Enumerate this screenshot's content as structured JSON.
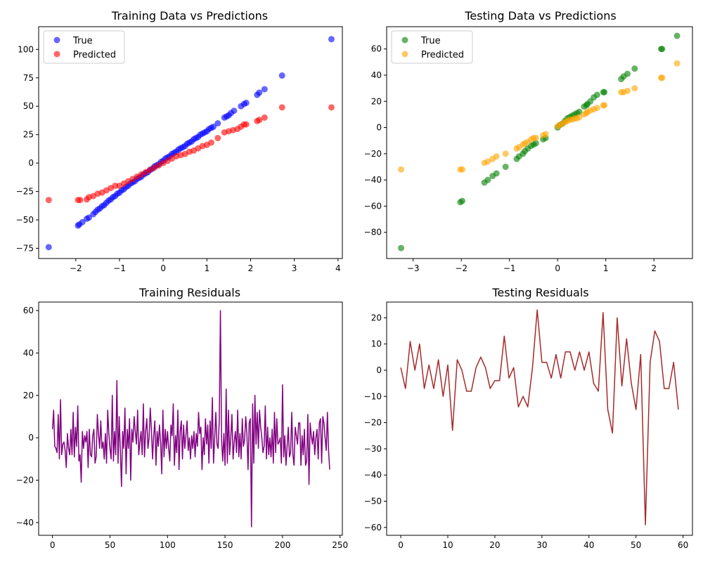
{
  "figure": {
    "background": "#ffffff"
  },
  "chart_data": [
    {
      "id": "train-scatter",
      "type": "scatter",
      "title": "Training Data vs Predictions",
      "xlim": [
        -2.85,
        4.1
      ],
      "ylim": [
        -84,
        120
      ],
      "xticks": [
        -2,
        -1,
        0,
        1,
        2,
        3,
        4
      ],
      "yticks": [
        -75,
        -50,
        -25,
        0,
        25,
        50,
        75,
        100
      ],
      "legend": "top-left",
      "series": [
        {
          "name": "True",
          "color": "#0000ff",
          "alpha": 0.6,
          "x": [
            -2.62,
            -1.95,
            -1.92,
            -1.85,
            -1.75,
            -1.7,
            -1.6,
            -1.55,
            -1.5,
            -1.45,
            -1.4,
            -1.35,
            -1.3,
            -1.25,
            -1.2,
            -1.15,
            -1.1,
            -1.05,
            -1.0,
            -0.95,
            -0.9,
            -0.85,
            -0.8,
            -0.75,
            -0.7,
            -0.65,
            -0.6,
            -0.55,
            -0.5,
            -0.45,
            -0.4,
            -0.35,
            -0.3,
            -0.25,
            -0.2,
            -0.15,
            -0.1,
            -0.05,
            0.0,
            0.05,
            0.1,
            0.15,
            0.2,
            0.25,
            0.3,
            0.35,
            0.4,
            0.45,
            0.5,
            0.55,
            0.6,
            0.65,
            0.7,
            0.75,
            0.8,
            0.85,
            0.9,
            0.95,
            1.0,
            1.05,
            1.1,
            1.15,
            1.25,
            1.4,
            1.45,
            1.5,
            1.55,
            1.62,
            1.78,
            1.85,
            1.9,
            2.15,
            2.2,
            2.32,
            2.72,
            3.85
          ],
          "y": [
            -74,
            -55,
            -54,
            -52,
            -49,
            -48,
            -45,
            -43,
            -41,
            -40,
            -38,
            -37,
            -35,
            -33,
            -32,
            -30,
            -29,
            -27,
            -26,
            -24,
            -23,
            -21,
            -20,
            -18,
            -17,
            -16,
            -14,
            -13,
            -12,
            -10,
            -9,
            -8,
            -6,
            -5,
            -3,
            -2,
            -1,
            1,
            2,
            4,
            5,
            6,
            8,
            9,
            10,
            12,
            13,
            14,
            15,
            17,
            18,
            19,
            21,
            22,
            23,
            25,
            26,
            27,
            28,
            30,
            31,
            32,
            35,
            40,
            41,
            42,
            44,
            46,
            50,
            52,
            53,
            60,
            62,
            65,
            77,
            109
          ]
        },
        {
          "name": "Predicted",
          "color": "#ff0000",
          "alpha": 0.6,
          "x": [
            -2.62,
            -1.95,
            -1.9,
            -1.75,
            -1.7,
            -1.6,
            -1.5,
            -1.4,
            -1.3,
            -1.2,
            -1.1,
            -1.0,
            -0.9,
            -0.8,
            -0.7,
            -0.6,
            -0.5,
            -0.4,
            -0.3,
            -0.2,
            -0.1,
            0.0,
            0.1,
            0.2,
            0.3,
            0.4,
            0.5,
            0.6,
            0.7,
            0.8,
            0.9,
            1.0,
            1.1,
            1.25,
            1.4,
            1.5,
            1.6,
            1.7,
            1.78,
            1.85,
            1.9,
            2.15,
            2.2,
            2.32,
            2.72,
            3.85
          ],
          "y": [
            -32.5,
            -32.5,
            -32.5,
            -32,
            -30,
            -29,
            -27,
            -26,
            -24,
            -22,
            -20,
            -20,
            -18,
            -16,
            -14,
            -12,
            -10,
            -8,
            -6,
            -4,
            -2,
            0,
            2,
            4,
            6,
            7,
            8,
            10,
            11,
            13,
            15,
            16,
            18,
            22,
            27,
            28,
            29,
            30,
            32,
            34,
            34,
            37,
            38,
            40,
            49,
            49
          ]
        }
      ]
    },
    {
      "id": "test-scatter",
      "type": "scatter",
      "title": "Testing Data vs Predictions",
      "xlim": [
        -3.55,
        2.8
      ],
      "ylim": [
        -100,
        77
      ],
      "xticks": [
        -3,
        -2,
        -1,
        0,
        1,
        2
      ],
      "yticks": [
        -80,
        -60,
        -40,
        -20,
        0,
        20,
        40,
        60
      ],
      "legend": "top-left",
      "series": [
        {
          "name": "True",
          "color": "#008000",
          "alpha": 0.6,
          "x": [
            -3.25,
            -2.02,
            -1.98,
            -1.52,
            -1.45,
            -1.35,
            -1.27,
            -1.08,
            -0.85,
            -0.8,
            -0.72,
            -0.68,
            -0.62,
            -0.55,
            -0.5,
            -0.45,
            -0.3,
            -0.25,
            0.0,
            0.05,
            0.1,
            0.15,
            0.2,
            0.25,
            0.3,
            0.35,
            0.4,
            0.45,
            0.55,
            0.6,
            0.62,
            0.68,
            0.75,
            0.82,
            0.95,
            0.97,
            1.32,
            1.37,
            1.45,
            1.6,
            2.15,
            2.17,
            2.48
          ],
          "y": [
            -92,
            -57,
            -56,
            -42,
            -40,
            -37,
            -35,
            -30,
            -24,
            -22,
            -20,
            -18,
            -16,
            -14,
            -13,
            -12,
            -9,
            -8,
            0,
            2,
            3,
            5,
            7,
            8,
            9,
            10,
            11,
            12,
            16,
            17,
            18,
            20,
            23,
            25,
            27,
            27,
            37,
            39,
            41,
            45,
            60,
            60,
            70
          ]
        },
        {
          "name": "Predicted",
          "color": "#ffa500",
          "alpha": 0.6,
          "x": [
            -3.25,
            -2.02,
            -1.98,
            -1.52,
            -1.45,
            -1.35,
            -1.27,
            -1.08,
            -0.85,
            -0.8,
            -0.72,
            -0.68,
            -0.62,
            -0.55,
            -0.5,
            -0.45,
            -0.3,
            -0.25,
            0.0,
            0.05,
            0.1,
            0.15,
            0.2,
            0.25,
            0.3,
            0.35,
            0.4,
            0.45,
            0.55,
            0.6,
            0.62,
            0.68,
            0.75,
            0.82,
            0.95,
            0.97,
            1.32,
            1.37,
            1.45,
            1.6,
            2.15,
            2.17,
            2.48
          ],
          "y": [
            -32,
            -32,
            -32,
            -27,
            -26,
            -24,
            -22,
            -20,
            -16,
            -15,
            -13,
            -12,
            -11,
            -9,
            -8,
            -8,
            -6,
            -5,
            1,
            2,
            3,
            4,
            5,
            6,
            6,
            7,
            7,
            8,
            10,
            11,
            12,
            13,
            14,
            15,
            17,
            17,
            27,
            27,
            28,
            30,
            38,
            38,
            49
          ]
        }
      ]
    },
    {
      "id": "train-residuals",
      "type": "line",
      "title": "Training Residuals",
      "xlim": [
        -12,
        252
      ],
      "ylim": [
        -46,
        64
      ],
      "xticks": [
        0,
        50,
        100,
        150,
        200,
        250
      ],
      "yticks": [
        -40,
        -20,
        0,
        20,
        40,
        60
      ],
      "series": [
        {
          "color": "#800080",
          "values": [
            4,
            13,
            -4,
            -5,
            -7,
            11,
            -10,
            18,
            -8,
            -3,
            -2,
            -6,
            -14,
            2,
            -5,
            -8,
            4,
            -8,
            12,
            -9,
            5,
            -4,
            15,
            -11,
            -8,
            -21,
            3,
            -5,
            1,
            -2,
            3,
            -14,
            4,
            -8,
            -9,
            1,
            4,
            -12,
            -9,
            11,
            2,
            -5,
            8,
            -5,
            -2,
            -10,
            2,
            -12,
            13,
            2,
            -5,
            -10,
            20,
            -11,
            3,
            -8,
            27,
            -12,
            10,
            -6,
            -23,
            3,
            -5,
            14,
            -17,
            4,
            -5,
            9,
            -20,
            4,
            -2,
            10,
            3,
            -3,
            13,
            -8,
            -2,
            3,
            -8,
            16,
            -9,
            3,
            9,
            -5,
            0,
            14,
            4,
            -10,
            1,
            8,
            -13,
            3,
            -4,
            6,
            -2,
            -17,
            13,
            -9,
            4,
            -5,
            3,
            -5,
            -11,
            6,
            1,
            16,
            -13,
            1,
            -7,
            13,
            -15,
            3,
            8,
            -10,
            6,
            -5,
            1,
            8,
            -6,
            0,
            -10,
            1,
            -5,
            3,
            -9,
            2,
            -4,
            12,
            2,
            5,
            -15,
            0,
            -8,
            9,
            -3,
            6,
            -12,
            8,
            -5,
            19,
            -12,
            0,
            12,
            -3,
            -5,
            8,
            60,
            -1,
            -11,
            2,
            -13,
            23,
            -12,
            13,
            -8,
            0,
            11,
            -10,
            -2,
            3,
            -7,
            13,
            -9,
            2,
            -10,
            9,
            -4,
            -1,
            10,
            2,
            -15,
            7,
            9,
            -42,
            16,
            -12,
            20,
            -3,
            12,
            -5,
            13,
            5,
            0,
            -7,
            -4,
            15,
            -10,
            5,
            -8,
            0,
            -9,
            4,
            -12,
            12,
            -7,
            9,
            -3,
            -2,
            0,
            -12,
            25,
            -9,
            1,
            -13,
            -4,
            5,
            -9,
            -7,
            12,
            -8,
            -13,
            5,
            1,
            -3,
            7,
            7,
            -13,
            1,
            -8,
            4,
            -13,
            -11,
            11,
            -22,
            7,
            1,
            -3,
            3,
            -8,
            0,
            4,
            -10,
            7,
            9,
            -12,
            10,
            7,
            0,
            -6,
            12,
            -6,
            -15
          ]
        }
      ]
    },
    {
      "id": "test-residuals",
      "type": "line",
      "title": "Testing Residuals",
      "xlim": [
        -3,
        62
      ],
      "ylim": [
        -63,
        26
      ],
      "xticks": [
        0,
        10,
        20,
        30,
        40,
        50,
        60
      ],
      "yticks": [
        -60,
        -50,
        -40,
        -30,
        -20,
        -10,
        0,
        10,
        20
      ],
      "series": [
        {
          "color": "#a52a2a",
          "values": [
            1,
            -7,
            11,
            0,
            10,
            -7,
            2,
            -7,
            4,
            -10,
            2,
            -23,
            4,
            0,
            -8,
            -8,
            1,
            5,
            1,
            -7,
            -4,
            -4,
            13,
            -3,
            1,
            -14,
            -10,
            -14,
            1,
            23,
            3,
            3,
            -3,
            6,
            -3,
            7,
            7,
            0,
            7,
            0,
            7,
            -5,
            -8,
            22,
            -15,
            -24,
            20,
            -6,
            12,
            -5,
            -15,
            6,
            -59,
            3,
            15,
            11,
            -7,
            -7,
            3,
            -15
          ]
        }
      ]
    }
  ]
}
